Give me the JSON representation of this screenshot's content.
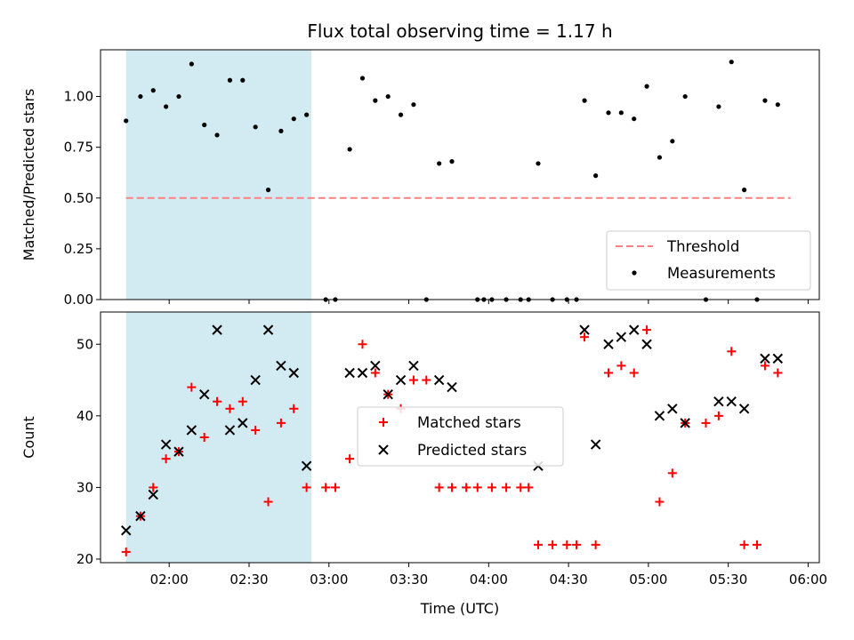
{
  "title": "Flux total observing time = 1.17 h",
  "chart_data": [
    {
      "type": "scatter",
      "ylabel": "Matched/Predicted stars",
      "xlabel": "",
      "ylim": [
        0,
        1.23
      ],
      "yticks": [
        "0.00",
        "0.25",
        "0.50",
        "0.75",
        "1.00"
      ],
      "yticks_values": [
        0,
        0.25,
        0.5,
        0.75,
        1.0
      ],
      "threshold": {
        "name": "Threshold",
        "value": 0.5,
        "x_from": 1.73,
        "x_to": 5.89,
        "color": "#ff8080"
      },
      "shaded_span": {
        "from": 1.73,
        "to": 2.89,
        "color": "#add8e6"
      },
      "legend": {
        "position": "lower right",
        "entries": [
          "Threshold",
          "Measurements"
        ]
      },
      "series": [
        {
          "name": "Measurements",
          "color": "#000000",
          "points": [
            [
              1.73,
              0.88
            ],
            [
              1.82,
              1.0
            ],
            [
              1.9,
              1.03
            ],
            [
              1.98,
              0.95
            ],
            [
              2.06,
              1.0
            ],
            [
              2.14,
              1.16
            ],
            [
              2.22,
              0.86
            ],
            [
              2.3,
              0.81
            ],
            [
              2.38,
              1.08
            ],
            [
              2.46,
              1.08
            ],
            [
              2.54,
              0.85
            ],
            [
              2.62,
              0.54
            ],
            [
              2.7,
              0.83
            ],
            [
              2.78,
              0.89
            ],
            [
              2.86,
              0.91
            ],
            [
              2.98,
              0.0
            ],
            [
              3.04,
              0.0
            ],
            [
              3.13,
              0.74
            ],
            [
              3.21,
              1.09
            ],
            [
              3.29,
              0.98
            ],
            [
              3.37,
              1.0
            ],
            [
              3.45,
              0.91
            ],
            [
              3.53,
              0.96
            ],
            [
              3.61,
              0.0
            ],
            [
              3.69,
              0.67
            ],
            [
              3.77,
              0.68
            ],
            [
              3.93,
              0.0
            ],
            [
              3.97,
              0.0
            ],
            [
              4.02,
              0.0
            ],
            [
              4.11,
              0.0
            ],
            [
              4.2,
              0.0
            ],
            [
              4.25,
              0.0
            ],
            [
              4.31,
              0.67
            ],
            [
              4.4,
              0.0
            ],
            [
              4.49,
              0.0
            ],
            [
              4.55,
              0.0
            ],
            [
              4.6,
              0.98
            ],
            [
              4.67,
              0.61
            ],
            [
              4.75,
              0.92
            ],
            [
              4.83,
              0.92
            ],
            [
              4.91,
              0.89
            ],
            [
              4.99,
              1.05
            ],
            [
              5.07,
              0.7
            ],
            [
              5.15,
              0.78
            ],
            [
              5.23,
              1.0
            ],
            [
              5.36,
              0.0
            ],
            [
              5.44,
              0.95
            ],
            [
              5.52,
              1.17
            ],
            [
              5.6,
              0.54
            ],
            [
              5.68,
              0.0
            ],
            [
              5.73,
              0.98
            ],
            [
              5.81,
              0.96
            ]
          ]
        }
      ]
    },
    {
      "type": "scatter",
      "ylabel": "Count",
      "xlabel": "Time (UTC)",
      "ylim": [
        19.5,
        54.5
      ],
      "yticks": [
        "20",
        "30",
        "40",
        "50"
      ],
      "yticks_values": [
        20,
        30,
        40,
        50
      ],
      "shaded_span": {
        "from": 1.73,
        "to": 2.89,
        "color": "#add8e6"
      },
      "legend": {
        "position": "center",
        "entries": [
          "Matched stars",
          "Predicted stars"
        ]
      },
      "series": [
        {
          "name": "Matched stars",
          "marker": "plus",
          "color": "#ff0000",
          "points": [
            [
              1.73,
              21
            ],
            [
              1.82,
              26
            ],
            [
              1.9,
              30
            ],
            [
              1.98,
              34
            ],
            [
              2.06,
              35
            ],
            [
              2.14,
              44
            ],
            [
              2.22,
              37
            ],
            [
              2.3,
              42
            ],
            [
              2.38,
              41
            ],
            [
              2.46,
              42
            ],
            [
              2.54,
              38
            ],
            [
              2.62,
              28
            ],
            [
              2.7,
              39
            ],
            [
              2.78,
              41
            ],
            [
              2.86,
              30
            ],
            [
              2.98,
              30
            ],
            [
              3.04,
              30
            ],
            [
              3.13,
              34
            ],
            [
              3.21,
              50
            ],
            [
              3.29,
              46
            ],
            [
              3.37,
              43
            ],
            [
              3.45,
              41
            ],
            [
              3.53,
              45
            ],
            [
              3.61,
              45
            ],
            [
              3.69,
              30
            ],
            [
              3.77,
              30
            ],
            [
              3.86,
              30
            ],
            [
              3.93,
              30
            ],
            [
              4.02,
              30
            ],
            [
              4.11,
              30
            ],
            [
              4.2,
              30
            ],
            [
              4.25,
              30
            ],
            [
              4.31,
              22
            ],
            [
              4.4,
              22
            ],
            [
              4.49,
              22
            ],
            [
              4.55,
              22
            ],
            [
              4.6,
              51
            ],
            [
              4.67,
              22
            ],
            [
              4.75,
              46
            ],
            [
              4.83,
              47
            ],
            [
              4.91,
              46
            ],
            [
              4.99,
              52
            ],
            [
              5.07,
              28
            ],
            [
              5.15,
              32
            ],
            [
              5.23,
              39
            ],
            [
              5.36,
              39
            ],
            [
              5.44,
              40
            ],
            [
              5.52,
              49
            ],
            [
              5.6,
              22
            ],
            [
              5.68,
              22
            ],
            [
              5.73,
              47
            ],
            [
              5.81,
              46
            ]
          ]
        },
        {
          "name": "Predicted stars",
          "marker": "x",
          "color": "#000000",
          "points": [
            [
              1.73,
              24
            ],
            [
              1.82,
              26
            ],
            [
              1.9,
              29
            ],
            [
              1.98,
              36
            ],
            [
              2.06,
              35
            ],
            [
              2.14,
              38
            ],
            [
              2.22,
              43
            ],
            [
              2.3,
              52
            ],
            [
              2.38,
              38
            ],
            [
              2.46,
              39
            ],
            [
              2.54,
              45
            ],
            [
              2.62,
              52
            ],
            [
              2.7,
              47
            ],
            [
              2.78,
              46
            ],
            [
              2.86,
              33
            ],
            [
              3.13,
              46
            ],
            [
              3.21,
              46
            ],
            [
              3.29,
              47
            ],
            [
              3.37,
              43
            ],
            [
              3.45,
              45
            ],
            [
              3.53,
              47
            ],
            [
              3.69,
              45
            ],
            [
              3.77,
              44
            ],
            [
              4.31,
              33
            ],
            [
              4.6,
              52
            ],
            [
              4.67,
              36
            ],
            [
              4.75,
              50
            ],
            [
              4.83,
              51
            ],
            [
              4.91,
              52
            ],
            [
              4.99,
              50
            ],
            [
              5.07,
              40
            ],
            [
              5.15,
              41
            ],
            [
              5.23,
              39
            ],
            [
              5.44,
              42
            ],
            [
              5.52,
              42
            ],
            [
              5.6,
              41
            ],
            [
              5.73,
              48
            ],
            [
              5.81,
              48
            ]
          ]
        }
      ]
    }
  ],
  "x_axis": {
    "range": [
      1.57,
      6.07
    ],
    "ticks": [
      "02:00",
      "02:30",
      "03:00",
      "03:30",
      "04:00",
      "04:30",
      "05:00",
      "05:30",
      "06:00"
    ],
    "tick_values": [
      2.0,
      2.5,
      3.0,
      3.5,
      4.0,
      4.5,
      5.0,
      5.5,
      6.0
    ]
  }
}
